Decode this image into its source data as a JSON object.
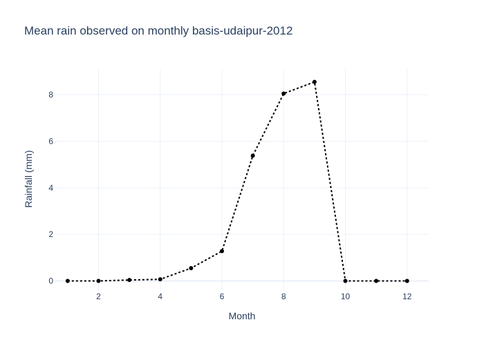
{
  "chart_data": {
    "type": "line",
    "title": "Mean rain observed on monthly basis-udaipur-2012",
    "xlabel": "Month",
    "ylabel": "Rainfall (mm)",
    "xlim": [
      0.6,
      12.7
    ],
    "ylim": [
      -0.4,
      9.1
    ],
    "xticks": [
      2,
      4,
      6,
      8,
      10,
      12
    ],
    "yticks": [
      0,
      2,
      4,
      6,
      8
    ],
    "grid": true,
    "series": [
      {
        "color": "#000000",
        "line_style": "dotted",
        "marker": "circle",
        "x": [
          1,
          2,
          3,
          4,
          5,
          6,
          7,
          8,
          9,
          10,
          11,
          12
        ],
        "y": [
          0.0,
          0.0,
          0.04,
          0.07,
          0.55,
          1.28,
          5.38,
          8.05,
          8.55,
          0.0,
          0.0,
          0.0
        ]
      }
    ]
  }
}
